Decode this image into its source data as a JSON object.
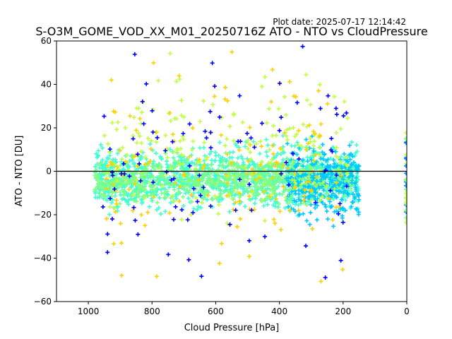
{
  "figure": {
    "plot_date": "Plot date: 2025-07-17 12:14:42"
  },
  "chart_data": {
    "type": "scatter",
    "title": "S-O3M_GOME_VOD_XX_M01_20250716Z ATO - NTO vs CloudPressure",
    "xlabel": "Cloud Pressure [hPa]",
    "ylabel": "ATO - NTO [DU]",
    "xlim": [
      1100,
      0
    ],
    "ylim": [
      -60,
      60
    ],
    "x_ticks": [
      1000,
      800,
      600,
      400,
      200,
      0
    ],
    "y_ticks": [
      -60,
      -40,
      -20,
      0,
      20,
      40,
      60
    ],
    "x_tick_labels": [
      "1000",
      "800",
      "600",
      "400",
      "200",
      "0"
    ],
    "y_tick_labels": [
      "−60",
      "−40",
      "−20",
      "0",
      "20",
      "40",
      "60"
    ],
    "reference_line": {
      "y": 0,
      "color": "#000000"
    },
    "marker": "+",
    "colors": [
      "#0000ff",
      "#0080ff",
      "#00c8ff",
      "#40ffd0",
      "#80ff80",
      "#c0ff40",
      "#ffd000",
      "#ffb000"
    ],
    "clusters": [
      {
        "x_range": [
          980,
          150
        ],
        "y_center": -3,
        "y_spread": 12,
        "color": "#40ffd0",
        "weight": 0.45
      },
      {
        "x_range": [
          980,
          160
        ],
        "y_center": -4,
        "y_spread": 8,
        "color": "#80ff80",
        "weight": 0.25
      },
      {
        "x_range": [
          380,
          150
        ],
        "y_center": -5,
        "y_spread": 14,
        "color": "#00c8ff",
        "weight": 0.12
      },
      {
        "x_range": [
          960,
          180
        ],
        "y_center": 10,
        "y_spread": 28,
        "color": "#c0ff40",
        "weight": 0.08
      },
      {
        "x_range": [
          950,
          200
        ],
        "y_center": 0,
        "y_spread": 40,
        "color": "#ffd000",
        "weight": 0.06
      },
      {
        "x_range": [
          960,
          180
        ],
        "y_center": 0,
        "y_spread": 42,
        "color": "#0000ff",
        "weight": 0.04
      }
    ],
    "edge_points": [
      {
        "x": 0,
        "y_range": [
          -25,
          18
        ],
        "colors": [
          "#0080ff",
          "#80ff80",
          "#c0ff40"
        ]
      }
    ]
  }
}
